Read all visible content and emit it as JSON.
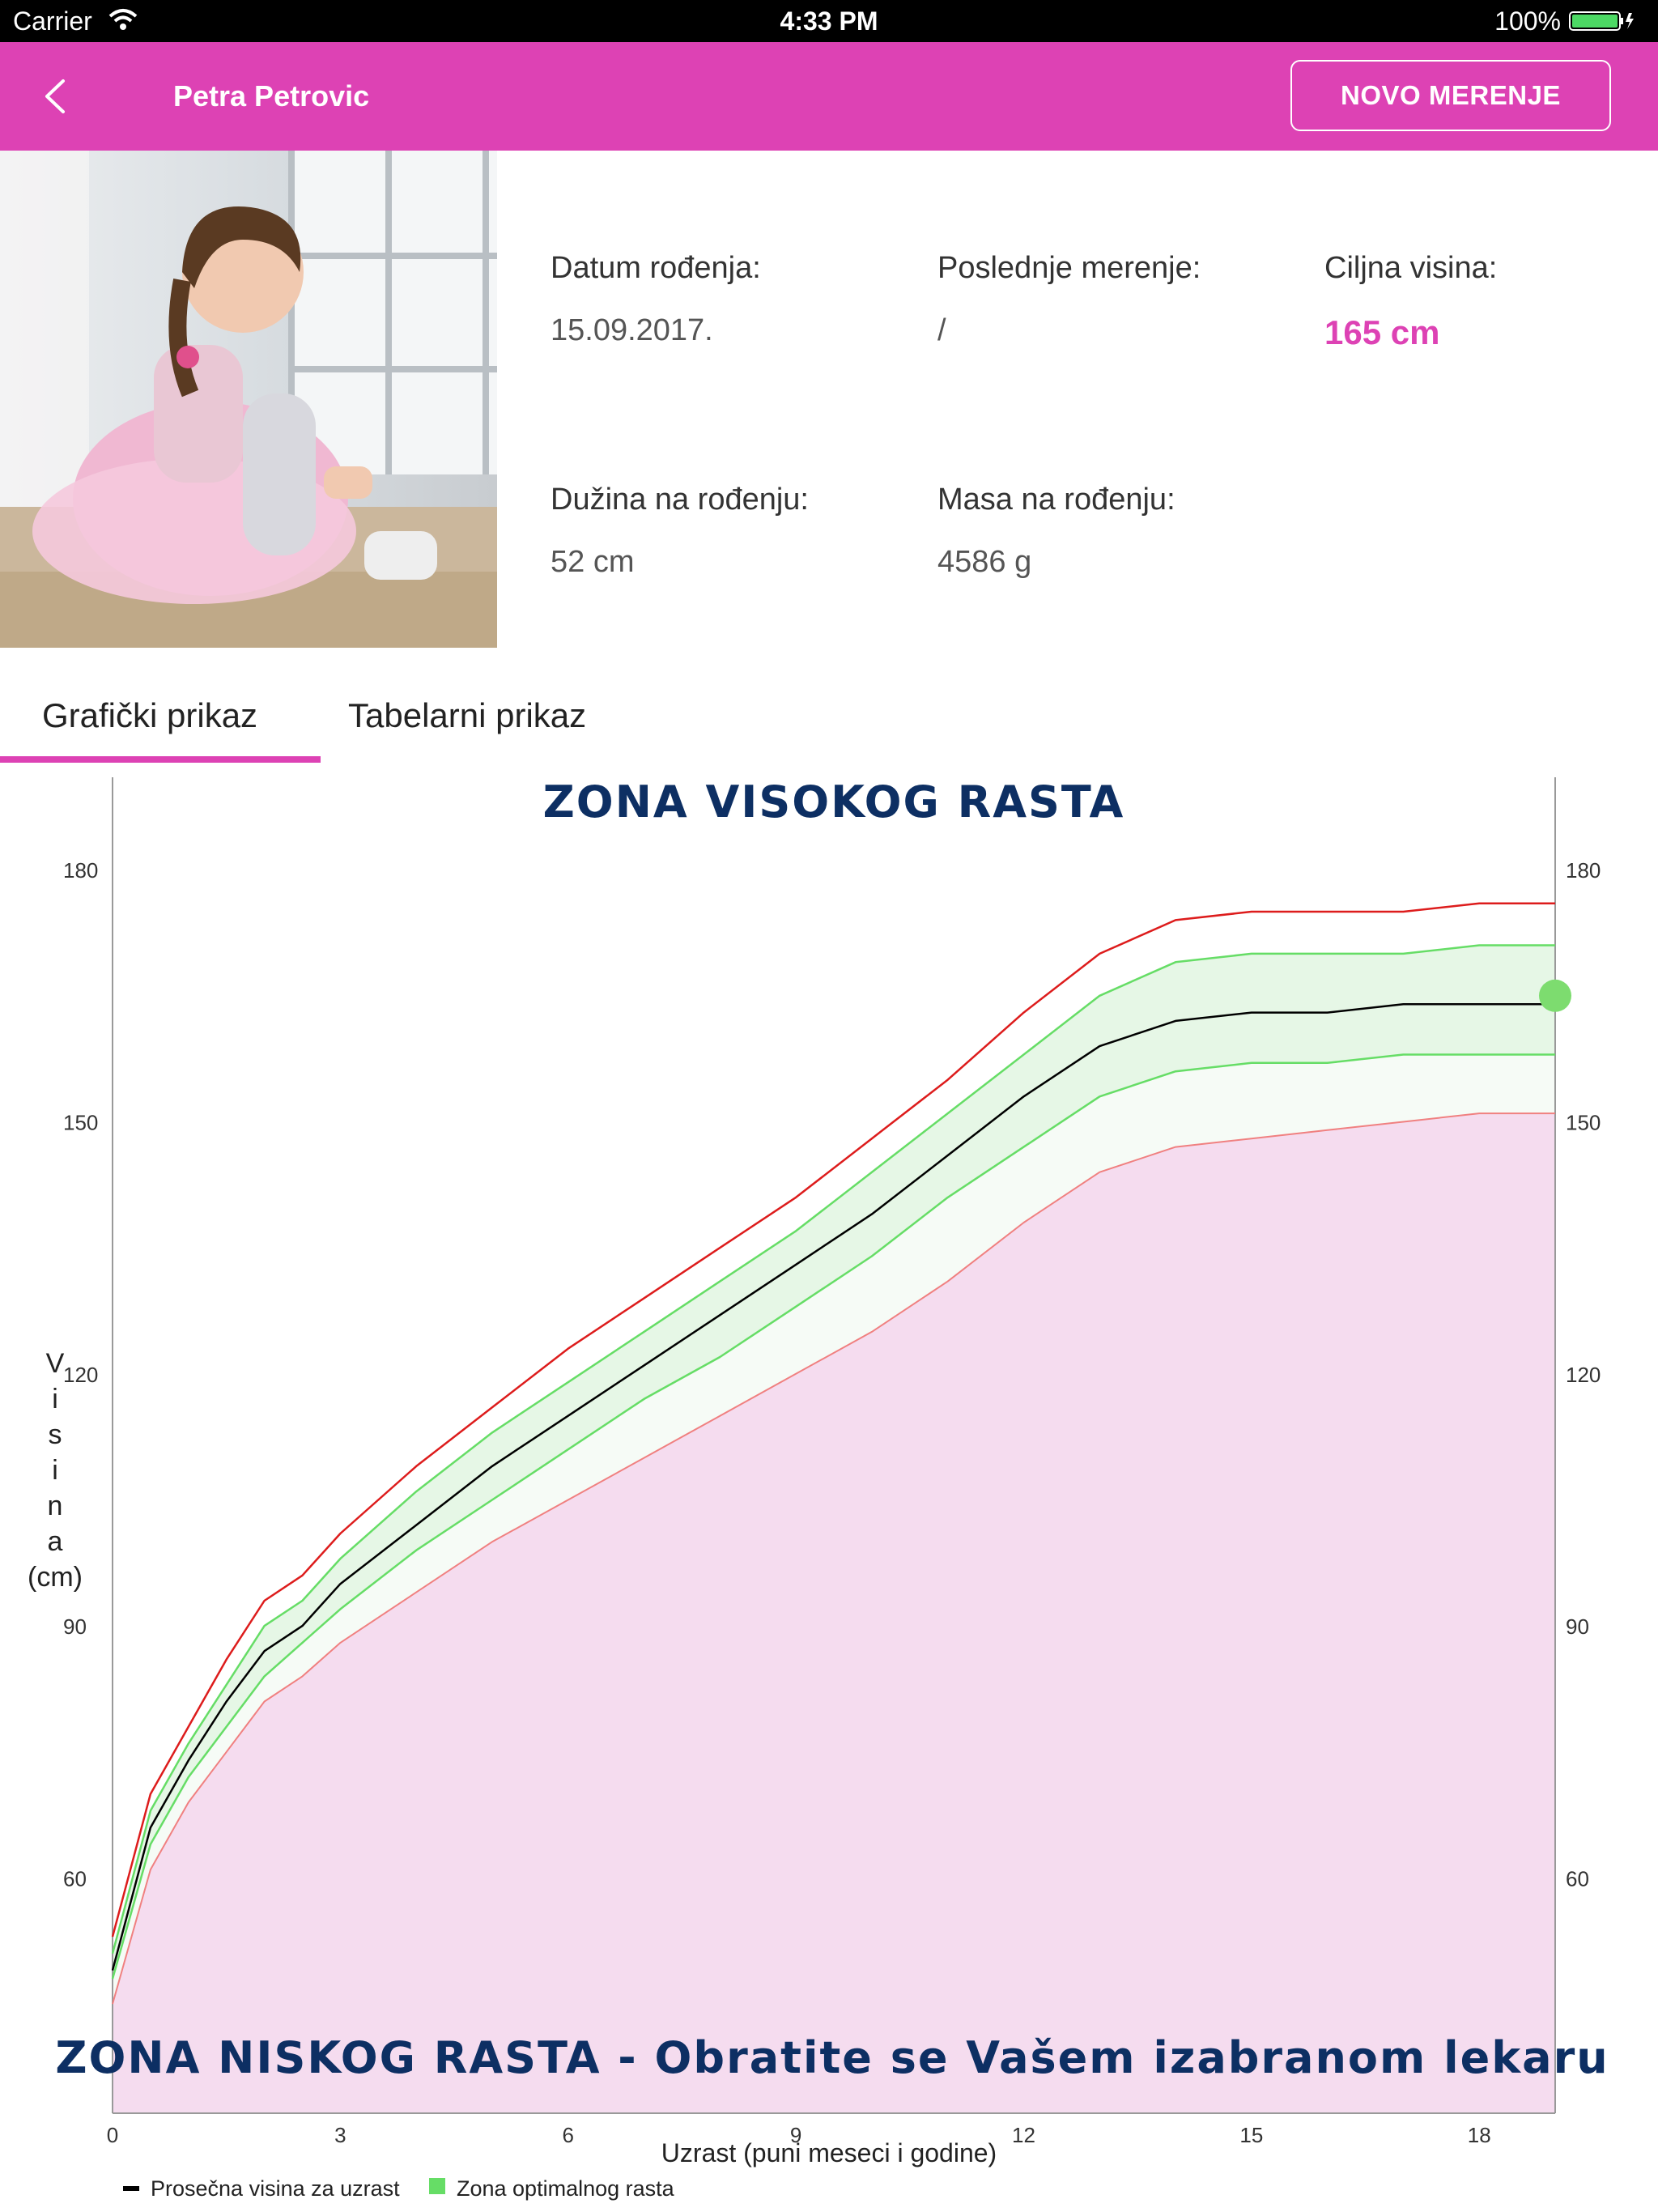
{
  "status_bar": {
    "carrier": "Carrier",
    "time": "4:33 PM",
    "battery": "100%"
  },
  "nav": {
    "title": "Petra Petrovic",
    "new_measurement": "NOVO MERENJE"
  },
  "info": {
    "birth_date_label": "Datum rođenja:",
    "birth_date": "15.09.2017.",
    "last_measure_label": "Poslednje merenje:",
    "last_measure": "/",
    "target_height_label": "Ciljna visina:",
    "target_height": "165 cm",
    "birth_length_label": "Dužina na rođenju:",
    "birth_length": "52 cm",
    "birth_mass_label": "Masa na rođenju:",
    "birth_mass": "4586 g"
  },
  "tabs": [
    {
      "label": "Grafički prikaz",
      "active": true
    },
    {
      "label": "Tabelarni prikaz",
      "active": false
    }
  ],
  "colors": {
    "accent": "#dd42b4",
    "upper_line": "#dd1c1c",
    "optimal_line": "#66dd66",
    "lower_line": "#f08080",
    "low_zone_fill": "#f5dcef",
    "optimal_fill": "#e6f7e6",
    "zone_text": "#0d2f63"
  },
  "chart_data": {
    "type": "line",
    "title_top": "ZONA VISOKOG RASTA",
    "title_bottom": "ZONA NISKOG RASTA - Obratite se Vašem izabranom lekaru",
    "ylabel": "Visina (cm)",
    "xlabel": "Uzrast (puni meseci i godine)",
    "xlim": [
      0,
      19
    ],
    "ylim": [
      32,
      191
    ],
    "x_ticks": [
      0,
      3,
      6,
      9,
      12,
      15,
      18
    ],
    "y_ticks": [
      60,
      90,
      120,
      150,
      180
    ],
    "legend": [
      {
        "label": "Prosečna visina za uzrast",
        "color": "#000000"
      },
      {
        "label": "Zona optimalnog rasta",
        "color": "#66dd66"
      }
    ],
    "x": [
      0,
      0.5,
      1,
      1.5,
      2,
      2.5,
      3,
      4,
      5,
      6,
      7,
      8,
      9,
      10,
      11,
      12,
      13,
      14,
      15,
      16,
      17,
      18,
      19
    ],
    "series": [
      {
        "role": "upper",
        "values": [
          53,
          70,
          78,
          86,
          93,
          96,
          101,
          109,
          116,
          123,
          129,
          135,
          141,
          148,
          155,
          163,
          170,
          174,
          175,
          175,
          175,
          176,
          176
        ]
      },
      {
        "role": "optimal_upper",
        "values": [
          51,
          68,
          76,
          83,
          90,
          93,
          98,
          106,
          113,
          119,
          125,
          131,
          137,
          144,
          151,
          158,
          165,
          169,
          170,
          170,
          170,
          171,
          171
        ]
      },
      {
        "role": "mean",
        "values": [
          49,
          66,
          74,
          81,
          87,
          90,
          95,
          102,
          109,
          115,
          121,
          127,
          133,
          139,
          146,
          153,
          159,
          162,
          163,
          163,
          164,
          164,
          164
        ]
      },
      {
        "role": "optimal_lower",
        "values": [
          48,
          64,
          72,
          78,
          84,
          88,
          92,
          99,
          105,
          111,
          117,
          122,
          128,
          134,
          141,
          147,
          153,
          156,
          157,
          157,
          158,
          158,
          158
        ]
      },
      {
        "role": "lower",
        "values": [
          45,
          61,
          69,
          75,
          81,
          84,
          88,
          94,
          100,
          105,
          110,
          115,
          120,
          125,
          131,
          138,
          144,
          147,
          148,
          149,
          150,
          151,
          151
        ]
      }
    ],
    "target_point": {
      "x": 19,
      "y": 165
    }
  }
}
